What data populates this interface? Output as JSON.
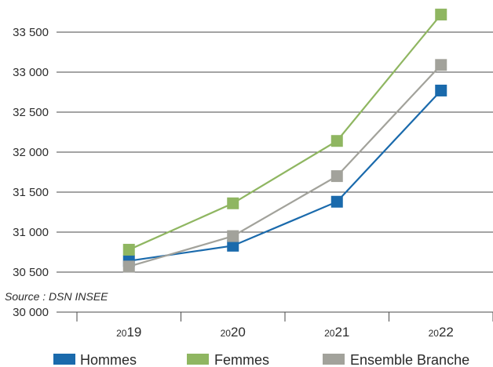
{
  "chart_data": {
    "type": "line",
    "categories": [
      "2019",
      "2020",
      "2021",
      "2022"
    ],
    "series": [
      {
        "name": "Hommes",
        "color": "#1a6aac",
        "values": [
          30640,
          30830,
          31380,
          32770
        ]
      },
      {
        "name": "Femmes",
        "color": "#8fb661",
        "values": [
          30780,
          31360,
          32140,
          33720
        ]
      },
      {
        "name": "Ensemble Branche",
        "color": "#a2a29b",
        "values": [
          30570,
          30950,
          31700,
          33090
        ]
      }
    ],
    "ylim": [
      30000,
      33500
    ],
    "yticks": [
      30000,
      30500,
      31000,
      31500,
      32000,
      32500,
      33000,
      33500
    ],
    "ytick_labels": [
      "30 000",
      "30 500",
      "31 000",
      "31 500",
      "32 000",
      "32 500",
      "33 000",
      "33 500"
    ],
    "grid": true,
    "legend_position": "bottom",
    "title": "",
    "xlabel": "",
    "ylabel": "",
    "source": "Source : DSN INSEE"
  }
}
